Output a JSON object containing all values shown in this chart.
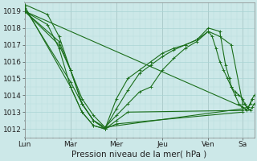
{
  "background_color": "#cce8e8",
  "plot_bg_color": "#cce8e8",
  "line_color": "#1a6e1a",
  "marker": "+",
  "markersize": 3,
  "linewidth": 0.8,
  "xlabel": "Pression niveau de la mer( hPa )",
  "xlabel_fontsize": 7.5,
  "tick_fontsize": 6.5,
  "ylim": [
    1011.5,
    1019.5
  ],
  "yticks": [
    1012,
    1013,
    1014,
    1015,
    1016,
    1017,
    1018,
    1019
  ],
  "day_positions": [
    0,
    48,
    96,
    144,
    192,
    228,
    240
  ],
  "day_labels": [
    "Lun",
    "Mar",
    "Mer",
    "Jeu",
    "Ven",
    "Sa",
    ""
  ],
  "total_hours": 240,
  "grid_major_color": "#aad4d4",
  "grid_minor_color": "#b8dcdc",
  "series": [
    {
      "x": [
        0,
        228
      ],
      "y": [
        1019.0,
        1013.3
      ]
    },
    {
      "x": [
        0,
        48,
        60,
        72,
        84,
        228
      ],
      "y": [
        1019.2,
        1014.8,
        1013.5,
        1012.5,
        1012.1,
        1013.2
      ]
    },
    {
      "x": [
        0,
        48,
        60,
        72,
        84,
        96,
        228
      ],
      "y": [
        1019.3,
        1014.5,
        1013.0,
        1012.2,
        1012.0,
        1012.3,
        1013.0
      ]
    },
    {
      "x": [
        0,
        36,
        48,
        60,
        72,
        84,
        96,
        108,
        228
      ],
      "y": [
        1019.0,
        1017.2,
        1015.5,
        1013.5,
        1012.5,
        1012.0,
        1012.5,
        1013.0,
        1013.1
      ]
    },
    {
      "x": [
        0,
        36,
        48,
        60,
        72,
        84,
        96,
        108,
        120,
        132,
        144,
        156,
        168,
        180,
        192,
        204,
        216,
        228,
        234,
        238
      ],
      "y": [
        1019.0,
        1017.0,
        1015.5,
        1013.8,
        1012.8,
        1012.1,
        1012.8,
        1013.5,
        1014.2,
        1014.5,
        1015.5,
        1016.2,
        1016.8,
        1017.2,
        1017.8,
        1017.5,
        1017.0,
        1013.5,
        1013.3,
        1013.8
      ]
    },
    {
      "x": [
        0,
        24,
        36,
        48,
        60,
        72,
        84,
        96,
        108,
        120,
        132,
        144,
        156,
        168,
        180,
        192,
        204,
        210,
        214,
        216,
        220,
        224,
        228,
        230,
        232,
        234,
        236,
        238,
        240
      ],
      "y": [
        1019.0,
        1018.2,
        1016.8,
        1014.5,
        1013.0,
        1012.2,
        1012.0,
        1013.2,
        1014.3,
        1015.3,
        1015.8,
        1016.3,
        1016.7,
        1017.0,
        1017.3,
        1018.0,
        1017.8,
        1015.8,
        1015.0,
        1014.5,
        1014.0,
        1013.5,
        1013.3,
        1013.2,
        1013.1,
        1013.3,
        1013.5,
        1013.8,
        1014.0
      ]
    },
    {
      "x": [
        0,
        24,
        36,
        48,
        60,
        72,
        84,
        96,
        108,
        120,
        132,
        144,
        156,
        168,
        180,
        192,
        196,
        200,
        204,
        208,
        212,
        216,
        220,
        224,
        228,
        230,
        232,
        234,
        236,
        238,
        240
      ],
      "y": [
        1019.4,
        1018.8,
        1017.5,
        1015.5,
        1013.5,
        1012.5,
        1012.0,
        1013.8,
        1015.0,
        1015.5,
        1016.0,
        1016.5,
        1016.8,
        1017.0,
        1017.3,
        1017.8,
        1017.5,
        1016.8,
        1016.0,
        1015.5,
        1015.0,
        1014.5,
        1014.2,
        1014.0,
        1013.8,
        1013.5,
        1013.3,
        1013.2,
        1013.1,
        1013.3,
        1013.5
      ]
    }
  ]
}
